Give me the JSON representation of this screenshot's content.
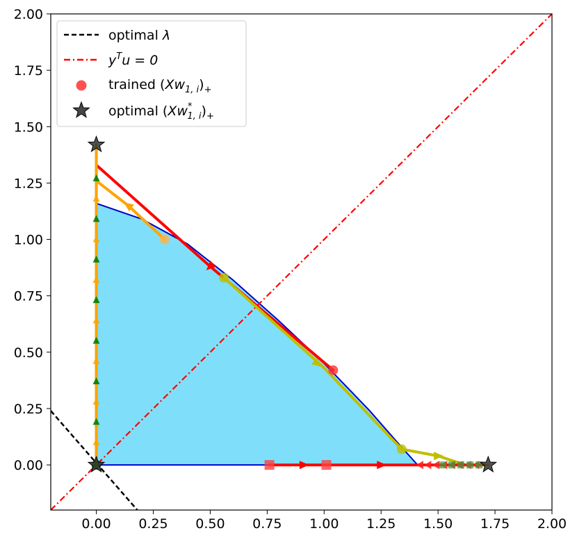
{
  "chart_data": {
    "type": "line",
    "xlim": [
      -0.2,
      2.0
    ],
    "ylim": [
      -0.2,
      2.0
    ],
    "x_ticks": [
      "0.00",
      "0.25",
      "0.50",
      "0.75",
      "1.00",
      "1.25",
      "1.50",
      "1.75",
      "2.00"
    ],
    "y_ticks": [
      "0.00",
      "0.25",
      "0.50",
      "0.75",
      "1.00",
      "1.25",
      "1.50",
      "1.75",
      "2.00"
    ],
    "grid": false,
    "legend": {
      "placement": "top-left",
      "entries": [
        {
          "label_pre": "optimal ",
          "label_math": "λ",
          "label_post": "",
          "style": "dashed",
          "color": "#000000"
        },
        {
          "label_pre": "",
          "label_math": "y",
          "sup": "T",
          "label_math2": "u = 0",
          "style": "dashdot",
          "color": "#ff0000"
        },
        {
          "label_pre": "trained (",
          "label_math": "Xw",
          "sub": "1, i",
          "label_post": ")",
          "post_sub": "+",
          "style": "circle",
          "color": "#ff0000"
        },
        {
          "label_pre": "optimal (",
          "label_math": "Xw",
          "sup": "*",
          "sub": "1, i",
          "label_post": ")",
          "post_sub": "+",
          "style": "star",
          "color": "#333333"
        }
      ]
    },
    "feasible_region": {
      "fill": "#7fdffa",
      "edge": "#0000cc",
      "boundary": [
        [
          0,
          0
        ],
        [
          0,
          1.16
        ],
        [
          0.2,
          1.09
        ],
        [
          0.4,
          0.98
        ],
        [
          0.6,
          0.82
        ],
        [
          0.8,
          0.64
        ],
        [
          1.0,
          0.45
        ],
        [
          1.2,
          0.24
        ],
        [
          1.33,
          0.09
        ],
        [
          1.41,
          0.0
        ]
      ]
    },
    "optimal_lambda_line": {
      "points": [
        [
          -0.2,
          0.24
        ],
        [
          0.18,
          -0.2
        ]
      ],
      "color": "#000000"
    },
    "yTu_line": {
      "points": [
        [
          -0.2,
          -0.2
        ],
        [
          2.0,
          2.0
        ]
      ],
      "color": "#ff0000"
    },
    "trajectories": [
      {
        "color": "#ff0000",
        "points": [
          [
            0.0,
            1.33
          ],
          [
            0.5,
            0.88
          ],
          [
            1.04,
            0.42
          ]
        ]
      },
      {
        "color": "#ffa500",
        "points": [
          [
            0.0,
            1.26
          ],
          [
            0.14,
            1.15
          ],
          [
            0.3,
            1.0
          ]
        ]
      },
      {
        "color": "#bfbf00",
        "points": [
          [
            0.56,
            0.83
          ],
          [
            1.0,
            0.43
          ],
          [
            1.34,
            0.07
          ],
          [
            1.5,
            0.04
          ],
          [
            1.62,
            0.0
          ],
          [
            1.72,
            0.0
          ]
        ]
      },
      {
        "color": "#007f00",
        "points": [
          [
            0.0,
            0.0
          ],
          [
            0.0,
            0.5
          ],
          [
            0.0,
            1.0
          ],
          [
            0.0,
            1.41
          ]
        ]
      },
      {
        "color": "#ff0000",
        "points": [
          [
            0.76,
            0.0
          ],
          [
            1.0,
            0.0
          ],
          [
            1.5,
            0.0
          ],
          [
            1.7,
            0.0
          ]
        ]
      },
      {
        "color": "#ffa500",
        "points": [
          [
            0.0,
            0.0
          ],
          [
            0.0,
            1.42
          ]
        ]
      }
    ],
    "trained_points": [
      {
        "x": 1.04,
        "y": 0.42,
        "color": "#ff3333"
      },
      {
        "x": 0.3,
        "y": 1.0,
        "color": "#ffb347"
      },
      {
        "x": 0.56,
        "y": 0.83,
        "color": "#bfbf00"
      },
      {
        "x": 1.34,
        "y": 0.07,
        "color": "#bfbf00"
      },
      {
        "x": 0.0,
        "y": 0.0,
        "color": "#007f00"
      }
    ],
    "optimal_points": [
      {
        "x": 0.0,
        "y": 1.42
      },
      {
        "x": 1.72,
        "y": 0.0
      },
      {
        "x": 0.0,
        "y": 0.0
      }
    ],
    "square_markers": [
      {
        "x": 0.76,
        "y": 0.0,
        "color": "#ff4040"
      },
      {
        "x": 1.01,
        "y": 0.0,
        "color": "#ff4040"
      }
    ],
    "arrow_markers": [
      {
        "x": 0.5,
        "y": 0.88,
        "dir": "down-left",
        "color": "#ff0000"
      },
      {
        "x": 0.14,
        "y": 1.15,
        "dir": "up-left",
        "color": "#ffa500"
      },
      {
        "x": 0.97,
        "y": 0.45,
        "dir": "down-right",
        "color": "#bfbf00"
      },
      {
        "x": 1.5,
        "y": 0.04,
        "dir": "right",
        "color": "#bfbf00"
      },
      {
        "x": 0.91,
        "y": 0.0,
        "dir": "right",
        "color": "#ff0000"
      },
      {
        "x": 1.25,
        "y": 0.0,
        "dir": "right",
        "color": "#ff0000"
      }
    ]
  }
}
